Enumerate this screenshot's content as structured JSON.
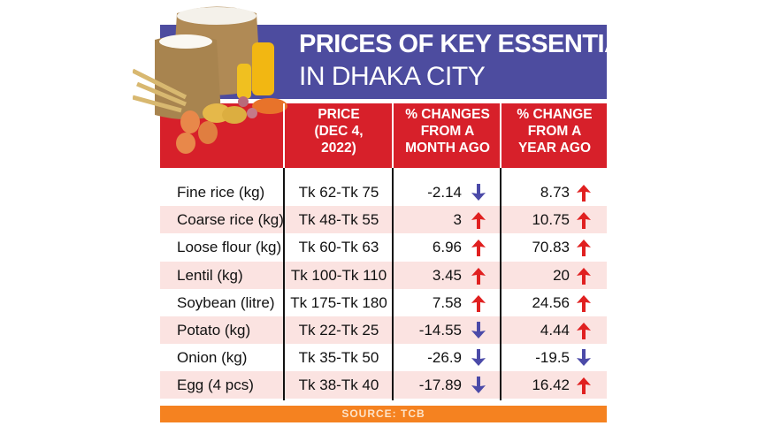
{
  "title_line1": "PRICES OF KEY ESSENTIALS",
  "title_line2": "IN DHAKA CITY",
  "colors": {
    "banner": "#4d4c9f",
    "header": "#d7202a",
    "stripe": "#fbe3e1",
    "source_bar": "#f58220",
    "up_arrow": "#e02020",
    "down_arrow": "#4b4aa8"
  },
  "chart_data": {
    "type": "table",
    "columns": [
      "",
      "PRICE\n(DEC 4,\n2022)",
      "% CHANGES\nFROM A\nMONTH AGO",
      "% CHANGE\nFROM A\nYEAR AGO"
    ],
    "rows": [
      {
        "item": "Fine rice (kg)",
        "price": "Tk 62-Tk 75",
        "month": "-2.14",
        "month_dir": "down",
        "year": "8.73",
        "year_dir": "up"
      },
      {
        "item": "Coarse rice (kg)",
        "price": "Tk 48-Tk 55",
        "month": "3",
        "month_dir": "up",
        "year": "10.75",
        "year_dir": "up"
      },
      {
        "item": "Loose flour (kg)",
        "price": "Tk 60-Tk 63",
        "month": "6.96",
        "month_dir": "up",
        "year": "70.83",
        "year_dir": "up"
      },
      {
        "item": "Lentil (kg)",
        "price": "Tk 100-Tk 110",
        "month": "3.45",
        "month_dir": "up",
        "year": "20",
        "year_dir": "up"
      },
      {
        "item": "Soybean (litre)",
        "price": "Tk 175-Tk 180",
        "month": "7.58",
        "month_dir": "up",
        "year": "24.56",
        "year_dir": "up"
      },
      {
        "item": "Potato (kg)",
        "price": "Tk 22-Tk 25",
        "month": "-14.55",
        "month_dir": "down",
        "year": "4.44",
        "year_dir": "up"
      },
      {
        "item": "Onion (kg)",
        "price": "Tk 35-Tk 50",
        "month": "-26.9",
        "month_dir": "down",
        "year": "-19.5",
        "year_dir": "down"
      },
      {
        "item": "Egg (4 pcs)",
        "price": "Tk 38-Tk 40",
        "month": "-17.89",
        "month_dir": "down",
        "year": "16.42",
        "year_dir": "up"
      }
    ]
  },
  "source": "SOURCE: TCB"
}
